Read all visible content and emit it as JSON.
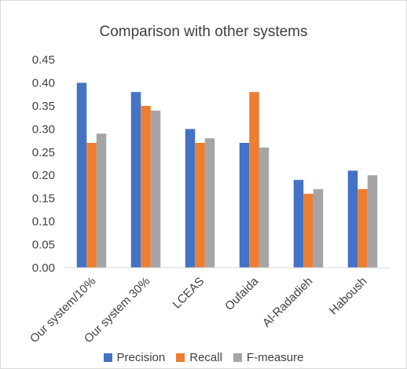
{
  "chart_data": {
    "type": "bar",
    "title": "Comparison with other systems",
    "categories": [
      "Our system/10%",
      "Our system 30%",
      "LCEAS",
      "Oufaida",
      "Al-Radadieh",
      "Haboush"
    ],
    "series": [
      {
        "name": "Precision",
        "color": "#4472c4",
        "values": [
          0.4,
          0.38,
          0.3,
          0.27,
          0.19,
          0.21
        ]
      },
      {
        "name": "Recall",
        "color": "#ed7d31",
        "values": [
          0.27,
          0.35,
          0.27,
          0.38,
          0.16,
          0.17
        ]
      },
      {
        "name": "F-measure",
        "color": "#a5a5a5",
        "values": [
          0.29,
          0.34,
          0.28,
          0.26,
          0.17,
          0.2
        ]
      }
    ],
    "ylim": [
      0,
      0.45
    ],
    "yticks": [
      "0.00",
      "0.05",
      "0.10",
      "0.15",
      "0.20",
      "0.25",
      "0.30",
      "0.35",
      "0.40",
      "0.45"
    ],
    "grid": false,
    "legend_position": "bottom"
  }
}
